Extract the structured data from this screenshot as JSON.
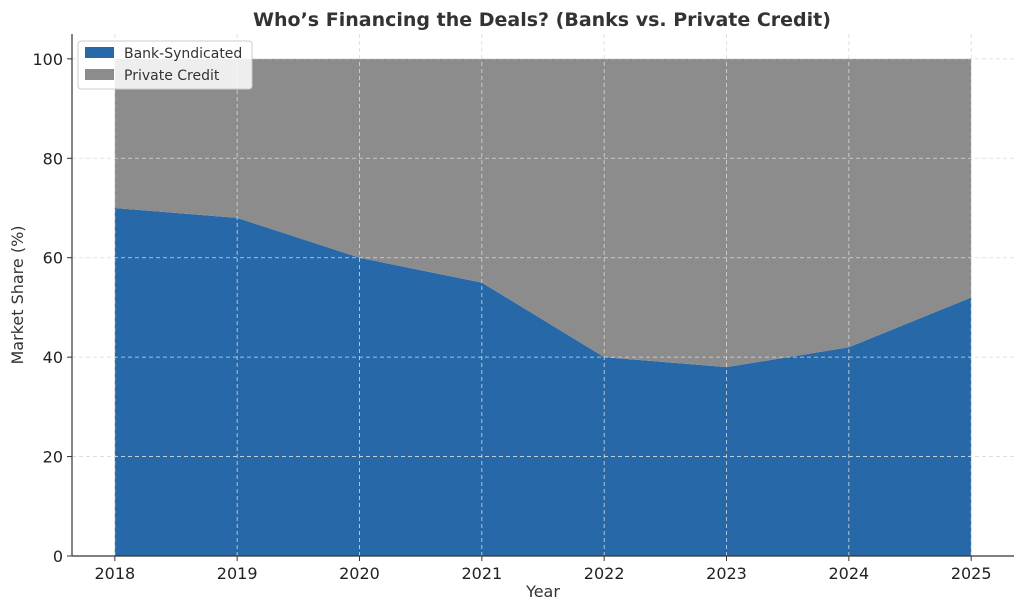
{
  "chart_data": {
    "type": "area",
    "stacked": true,
    "title": "Who’s Financing the Deals? (Banks vs. Private Credit)",
    "xlabel": "Year",
    "ylabel": "Market Share (%)",
    "x": [
      2018,
      2019,
      2020,
      2021,
      2022,
      2023,
      2024,
      2025
    ],
    "series": [
      {
        "name": "Bank-Syndicated",
        "values": [
          70,
          68,
          60,
          55,
          40,
          38,
          42,
          52
        ],
        "color": "#2768a8"
      },
      {
        "name": "Private Credit",
        "values": [
          30,
          32,
          40,
          45,
          60,
          62,
          58,
          48
        ],
        "color": "#8c8c8c"
      }
    ],
    "xlim": [
      2017.65,
      2025.35
    ],
    "ylim": [
      0,
      105
    ],
    "yticks": [
      0,
      20,
      40,
      60,
      80,
      100
    ],
    "xticks": [
      "2018",
      "2019",
      "2020",
      "2021",
      "2022",
      "2023",
      "2024",
      "2025"
    ],
    "grid": true,
    "legend": "top-left"
  }
}
